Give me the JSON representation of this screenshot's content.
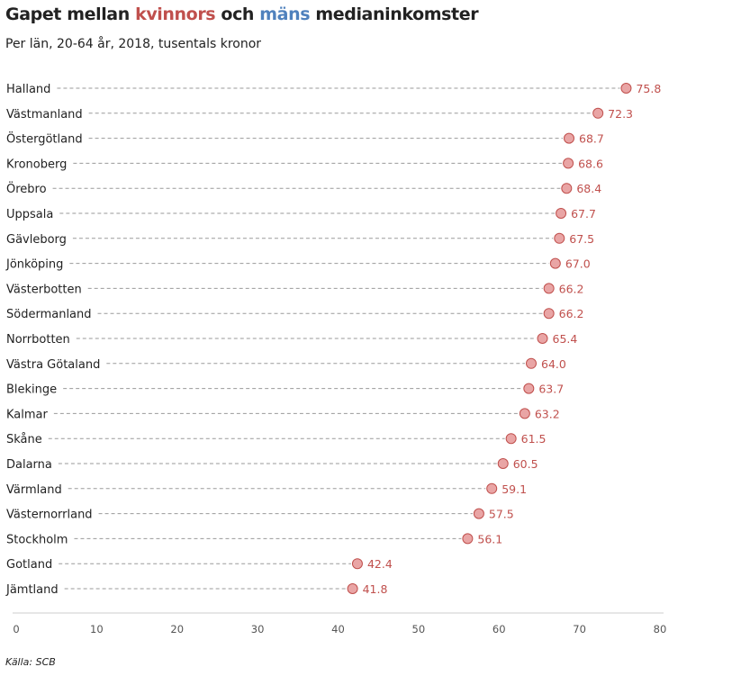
{
  "title": {
    "part1": "Gapet mellan ",
    "kvinnors": "kvinnors",
    "part2": " och ",
    "mans": "mäns",
    "part3": " medianinkomster"
  },
  "subtitle": "Per län, 20-64 år, 2018, tusentals kronor",
  "source": "Källa: SCB",
  "colors": {
    "kvinnors": "#c0504d",
    "mans": "#4f81bd",
    "dot_fill": "#e9a5a5",
    "dot_stroke": "#c0504d",
    "value_label": "#c0504d",
    "leader": "#9a9a9a",
    "axis": "#cccccc",
    "text": "#222222"
  },
  "chart_data": {
    "type": "scatter",
    "style": "dot-with-dashed-leader",
    "orientation": "horizontal",
    "categories": [
      "Halland",
      "Västmanland",
      "Östergötland",
      "Kronoberg",
      "Örebro",
      "Uppsala",
      "Gävleborg",
      "Jönköping",
      "Västerbotten",
      "Södermanland",
      "Norrbotten",
      "Västra Götaland",
      "Blekinge",
      "Kalmar",
      "Skåne",
      "Dalarna",
      "Värmland",
      "Västernorrland",
      "Stockholm",
      "Gotland",
      "Jämtland"
    ],
    "values": [
      75.8,
      72.3,
      68.7,
      68.6,
      68.4,
      67.7,
      67.5,
      67.0,
      66.2,
      66.2,
      65.4,
      64.0,
      63.7,
      63.2,
      61.5,
      60.5,
      59.1,
      57.5,
      56.1,
      42.4,
      41.8
    ],
    "value_labels": [
      "75.8",
      "72.3",
      "68.7",
      "68.6",
      "68.4",
      "67.7",
      "67.5",
      "67.0",
      "66.2",
      "66.2",
      "65.4",
      "64.0",
      "63.7",
      "63.2",
      "61.5",
      "60.5",
      "59.1",
      "57.5",
      "56.1",
      "42.4",
      "41.8"
    ],
    "xlim": [
      0,
      80
    ],
    "xticks": [
      0,
      10,
      20,
      30,
      40,
      50,
      60,
      70,
      80
    ],
    "xtick_labels": [
      "0",
      "10",
      "20",
      "30",
      "40",
      "50",
      "60",
      "70",
      "80"
    ],
    "grid": false,
    "legend": "none"
  }
}
